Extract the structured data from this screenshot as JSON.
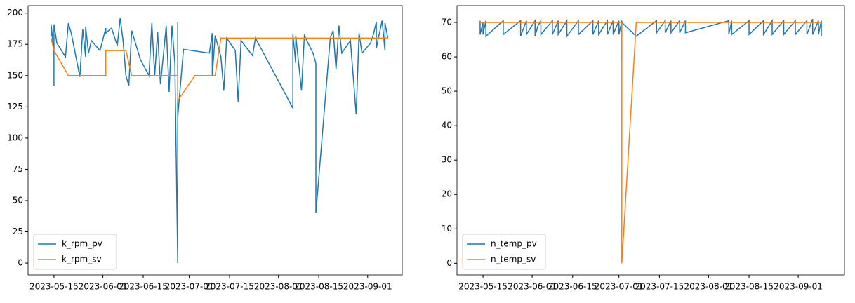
{
  "chart_data": [
    {
      "type": "line",
      "legend": "lower left",
      "grid": false,
      "xlim": [
        "2023-05-06",
        "2023-09-13"
      ],
      "ylim": [
        -9.5,
        206
      ],
      "xticks": [
        "2023-05-15",
        "2023-06-01",
        "2023-06-15",
        "2023-07-01",
        "2023-07-15",
        "2023-08-01",
        "2023-08-15",
        "2023-09-01"
      ],
      "yticks": [
        0,
        25,
        50,
        75,
        100,
        125,
        150,
        175,
        200
      ],
      "series": [
        {
          "name": "k_rpm_pv",
          "color": "#1f77b4",
          "x": [
            "2023-05-14",
            "2023-05-14",
            "2023-05-15",
            "2023-05-15",
            "2023-05-15",
            "2023-05-16",
            "2023-05-19",
            "2023-05-20",
            "2023-05-21",
            "2023-05-24",
            "2023-05-25",
            "2023-05-26",
            "2023-05-26",
            "2023-05-27",
            "2023-05-28",
            "2023-05-31",
            "2023-06-02",
            "2023-06-02",
            "2023-06-04",
            "2023-06-06",
            "2023-06-07",
            "2023-06-08",
            "2023-06-09",
            "2023-06-10",
            "2023-06-11",
            "2023-06-14",
            "2023-06-17",
            "2023-06-18",
            "2023-06-19",
            "2023-06-20",
            "2023-06-21",
            "2023-06-22",
            "2023-06-23",
            "2023-06-24",
            "2023-06-25",
            "2023-06-26",
            "2023-06-27",
            "2023-06-27",
            "2023-06-27",
            "2023-06-29",
            "2023-07-08",
            "2023-07-09",
            "2023-07-09",
            "2023-07-10",
            "2023-07-12",
            "2023-07-13",
            "2023-07-14",
            "2023-07-17",
            "2023-07-18",
            "2023-07-19",
            "2023-07-23",
            "2023-07-24",
            "2023-08-06",
            "2023-08-06",
            "2023-08-07",
            "2023-08-07",
            "2023-08-09",
            "2023-08-10",
            "2023-08-13",
            "2023-08-14",
            "2023-08-14",
            "2023-08-19",
            "2023-08-20",
            "2023-08-21",
            "2023-08-22",
            "2023-08-23",
            "2023-08-26",
            "2023-08-28",
            "2023-08-29",
            "2023-08-30",
            "2023-09-02",
            "2023-09-03",
            "2023-09-04",
            "2023-09-04",
            "2023-09-06",
            "2023-09-07",
            "2023-09-07",
            "2023-09-08"
          ],
          "values": [
            181,
            191,
            168,
            142,
            191,
            176,
            165,
            192,
            184,
            149,
            187,
            165,
            189,
            168,
            178,
            170,
            188,
            184,
            188,
            174,
            196,
            178,
            150,
            142,
            186,
            163,
            150,
            192,
            150,
            185,
            143,
            166,
            190,
            137,
            190,
            160,
            0,
            193,
            117,
            171,
            168,
            184,
            150,
            182,
            165,
            138,
            180,
            170,
            129,
            178,
            166,
            180,
            124,
            183,
            160,
            182,
            138,
            182,
            168,
            160,
            40,
            180,
            186,
            155,
            190,
            168,
            178,
            119,
            184,
            168,
            176,
            183,
            193,
            172,
            194,
            170,
            192,
            180
          ]
        },
        {
          "name": "k_rpm_sv",
          "color": "#ff7f0e",
          "x": [
            "2023-05-14",
            "2023-05-15",
            "2023-05-20",
            "2023-06-02",
            "2023-06-02",
            "2023-06-09",
            "2023-06-11",
            "2023-06-27",
            "2023-06-27",
            "2023-07-03",
            "2023-07-10",
            "2023-07-12",
            "2023-09-08"
          ],
          "values": [
            180,
            170,
            150,
            150,
            170,
            170,
            150,
            150,
            130,
            150,
            150,
            180,
            180
          ]
        }
      ]
    },
    {
      "type": "line",
      "legend": "lower left",
      "grid": false,
      "xlim": [
        "2023-05-06",
        "2023-09-17"
      ],
      "ylim": [
        -3.4,
        74.9
      ],
      "xticks": [
        "2023-05-15",
        "2023-06-01",
        "2023-06-15",
        "2023-07-01",
        "2023-07-15",
        "2023-08-01",
        "2023-08-15",
        "2023-09-01"
      ],
      "yticks": [
        0,
        10,
        20,
        30,
        40,
        50,
        60,
        70
      ],
      "series": [
        {
          "name": "n_temp_pv",
          "color": "#1f77b4",
          "x": [
            "2023-05-14",
            "2023-05-14",
            "2023-05-15",
            "2023-05-15",
            "2023-05-16",
            "2023-05-16",
            "2023-05-22",
            "2023-05-22",
            "2023-05-28",
            "2023-05-28",
            "2023-05-30",
            "2023-05-30",
            "2023-06-02",
            "2023-06-02",
            "2023-06-03",
            "2023-06-04",
            "2023-06-04",
            "2023-06-08",
            "2023-06-08",
            "2023-06-10",
            "2023-06-10",
            "2023-06-13",
            "2023-06-13",
            "2023-06-17",
            "2023-06-17",
            "2023-06-22",
            "2023-06-22",
            "2023-06-24",
            "2023-06-24",
            "2023-06-27",
            "2023-06-27",
            "2023-06-29",
            "2023-06-29",
            "2023-07-01",
            "2023-07-01",
            "2023-07-02",
            "2023-07-02",
            "2023-07-02",
            "2023-07-07",
            "2023-07-14",
            "2023-07-14",
            "2023-07-17",
            "2023-07-17",
            "2023-07-19",
            "2023-07-19",
            "2023-07-22",
            "2023-07-22",
            "2023-07-24",
            "2023-07-24",
            "2023-08-08",
            "2023-08-08",
            "2023-08-09",
            "2023-08-09",
            "2023-08-15",
            "2023-08-15",
            "2023-08-20",
            "2023-08-20",
            "2023-08-23",
            "2023-08-23",
            "2023-08-27",
            "2023-08-27",
            "2023-08-31",
            "2023-08-31",
            "2023-09-04",
            "2023-09-04",
            "2023-09-06",
            "2023-09-06",
            "2023-09-08",
            "2023-09-08",
            "2023-09-09",
            "2023-09-09"
          ],
          "values": [
            70.5,
            66.5,
            70,
            66.5,
            70.5,
            66,
            70.5,
            66.5,
            70.5,
            66,
            70.5,
            66.5,
            70.5,
            66,
            69,
            70.5,
            66.5,
            70.5,
            66.5,
            70.5,
            66.5,
            70.5,
            66,
            70.5,
            66.5,
            70.5,
            66.5,
            70.5,
            66.5,
            70.5,
            66.5,
            70.5,
            66.5,
            70.5,
            66.5,
            70.5,
            59,
            70,
            66,
            70.5,
            67,
            70.5,
            67,
            70.5,
            67,
            70.5,
            67,
            70.5,
            67,
            70.5,
            66.5,
            70.5,
            66.5,
            70.5,
            66.5,
            70.5,
            66.5,
            70.5,
            66.5,
            70.5,
            66.5,
            70.5,
            66.5,
            70.5,
            66.5,
            71,
            66.5,
            70.5,
            66.5,
            70.5,
            66
          ]
        },
        {
          "name": "n_temp_sv",
          "color": "#ff7f0e",
          "x": [
            "2023-05-14",
            "2023-07-02",
            "2023-07-02",
            "2023-07-07",
            "2023-09-09"
          ],
          "values": [
            70,
            70,
            0,
            70,
            70
          ]
        }
      ]
    }
  ]
}
